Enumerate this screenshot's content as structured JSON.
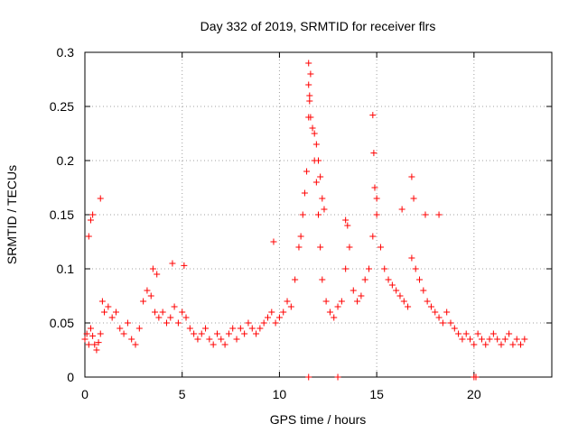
{
  "chart_data": {
    "type": "scatter",
    "title": "Day 332 of 2019, SRMTID for receiver flrs",
    "xlabel": "GPS time / hours",
    "ylabel": "SRMTID / TECUs",
    "xlim": [
      0,
      24
    ],
    "ylim": [
      0,
      0.3
    ],
    "xticks": [
      0,
      5,
      10,
      15,
      20
    ],
    "xtick_labels": [
      "0",
      "5",
      "10",
      "15",
      "20"
    ],
    "yticks": [
      0,
      0.05,
      0.1,
      0.15,
      0.2,
      0.25,
      0.3
    ],
    "ytick_labels": [
      "0",
      "0.05",
      "0.1",
      "0.15",
      "0.2",
      "0.25",
      "0.3"
    ],
    "grid": true,
    "marker": "+",
    "series": [
      {
        "name": "SRMTID",
        "color": "#ff0000",
        "x": [
          0.0,
          0.1,
          0.2,
          0.3,
          0.4,
          0.5,
          0.6,
          0.7,
          0.8,
          0.9,
          1.0,
          1.2,
          1.4,
          1.6,
          1.8,
          2.0,
          2.2,
          2.4,
          2.6,
          2.8,
          3.0,
          3.2,
          3.4,
          3.6,
          3.8,
          4.0,
          4.2,
          4.4,
          4.6,
          4.8,
          5.0,
          5.2,
          5.4,
          5.6,
          5.8,
          6.0,
          6.2,
          6.4,
          6.6,
          6.8,
          7.0,
          7.2,
          7.4,
          7.6,
          7.8,
          8.0,
          8.2,
          8.4,
          8.6,
          8.8,
          9.0,
          9.2,
          9.4,
          9.6,
          9.8,
          10.0,
          10.2,
          10.4,
          10.6,
          10.8,
          11.0,
          11.1,
          11.2,
          11.3,
          11.4,
          11.5,
          11.55,
          11.6,
          11.7,
          11.8,
          11.9,
          12.0,
          12.1,
          12.2,
          12.4,
          12.6,
          12.8,
          13.0,
          13.2,
          13.4,
          13.6,
          13.8,
          14.0,
          14.2,
          14.4,
          14.6,
          14.8,
          15.0,
          15.2,
          15.4,
          15.6,
          15.8,
          16.0,
          16.2,
          16.4,
          16.6,
          16.8,
          17.0,
          17.2,
          17.4,
          17.6,
          17.8,
          18.0,
          18.2,
          18.4,
          18.6,
          18.8,
          19.0,
          19.2,
          19.4,
          19.6,
          19.8,
          20.0,
          20.2,
          20.4,
          20.6,
          20.8,
          21.0,
          21.2,
          21.4,
          21.6,
          21.8,
          22.0,
          22.2,
          22.4,
          22.6,
          0.2,
          0.3,
          0.4,
          0.8,
          3.5,
          3.7,
          4.5,
          5.1,
          9.7,
          11.5,
          11.5,
          11.55,
          11.6,
          11.8,
          11.9,
          12.0,
          12.1,
          12.2,
          12.3,
          13.4,
          13.5,
          14.8,
          14.85,
          14.9,
          15.0,
          16.3,
          16.8,
          16.9,
          17.5,
          18.2,
          11.5,
          13.0,
          20.0,
          20.1
        ],
        "y": [
          0.035,
          0.04,
          0.03,
          0.045,
          0.038,
          0.03,
          0.025,
          0.032,
          0.04,
          0.07,
          0.06,
          0.065,
          0.055,
          0.06,
          0.045,
          0.04,
          0.05,
          0.035,
          0.03,
          0.045,
          0.07,
          0.08,
          0.075,
          0.06,
          0.055,
          0.06,
          0.05,
          0.055,
          0.065,
          0.05,
          0.06,
          0.055,
          0.045,
          0.04,
          0.035,
          0.04,
          0.045,
          0.035,
          0.03,
          0.04,
          0.035,
          0.03,
          0.04,
          0.045,
          0.035,
          0.045,
          0.04,
          0.05,
          0.045,
          0.04,
          0.045,
          0.05,
          0.055,
          0.06,
          0.05,
          0.055,
          0.06,
          0.07,
          0.065,
          0.09,
          0.12,
          0.13,
          0.15,
          0.17,
          0.19,
          0.24,
          0.26,
          0.28,
          0.23,
          0.2,
          0.18,
          0.15,
          0.12,
          0.09,
          0.07,
          0.06,
          0.055,
          0.065,
          0.07,
          0.1,
          0.12,
          0.08,
          0.07,
          0.075,
          0.09,
          0.1,
          0.13,
          0.15,
          0.12,
          0.1,
          0.09,
          0.085,
          0.08,
          0.075,
          0.07,
          0.065,
          0.11,
          0.1,
          0.09,
          0.08,
          0.07,
          0.065,
          0.06,
          0.055,
          0.05,
          0.06,
          0.05,
          0.045,
          0.04,
          0.035,
          0.04,
          0.035,
          0.03,
          0.04,
          0.035,
          0.03,
          0.035,
          0.04,
          0.035,
          0.03,
          0.035,
          0.04,
          0.03,
          0.035,
          0.03,
          0.035,
          0.13,
          0.145,
          0.15,
          0.165,
          0.1,
          0.095,
          0.105,
          0.103,
          0.125,
          0.29,
          0.27,
          0.255,
          0.24,
          0.225,
          0.215,
          0.2,
          0.185,
          0.165,
          0.155,
          0.145,
          0.14,
          0.242,
          0.207,
          0.175,
          0.165,
          0.155,
          0.185,
          0.165,
          0.15,
          0.15,
          0.0,
          0.0,
          0.0,
          0.0
        ]
      }
    ]
  }
}
